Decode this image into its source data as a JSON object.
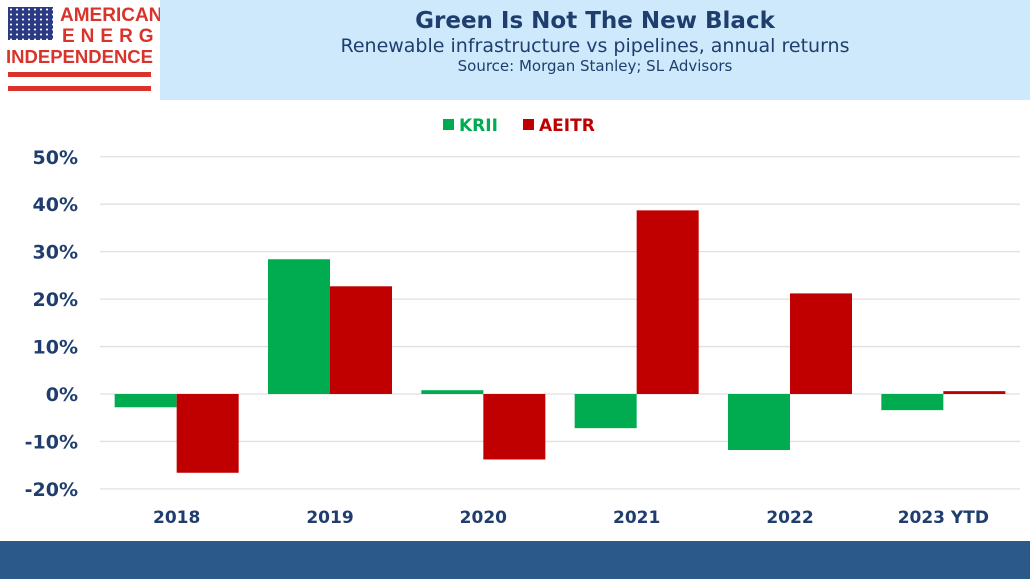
{
  "logo": {
    "line1": "AMERICAN",
    "line2": "ENERGY",
    "line3": "INDEPENDENCE"
  },
  "header": {
    "title": "Green Is Not The New Black",
    "subtitle": "Renewable infrastructure vs pipelines, annual returns",
    "source": "Source: Morgan Stanley; SL Advisors"
  },
  "chart_data": {
    "type": "bar",
    "title": "Green Is Not The New Black",
    "categories": [
      "2018",
      "2019",
      "2020",
      "2021",
      "2022",
      "2023 YTD"
    ],
    "series": [
      {
        "name": "KRII",
        "color": "#00ac4f",
        "values": [
          -2.8,
          28.4,
          0.8,
          -7.2,
          -11.8,
          -3.4
        ]
      },
      {
        "name": "AEITR",
        "color": "#c00000",
        "values": [
          -16.6,
          22.7,
          -13.8,
          38.7,
          21.2,
          0.6
        ]
      }
    ],
    "ylim": [
      -20,
      50
    ],
    "yticks": [
      "-20%",
      "-10%",
      "0%",
      "10%",
      "20%",
      "30%",
      "40%",
      "50%"
    ],
    "grid": true,
    "legend": "top-center"
  }
}
